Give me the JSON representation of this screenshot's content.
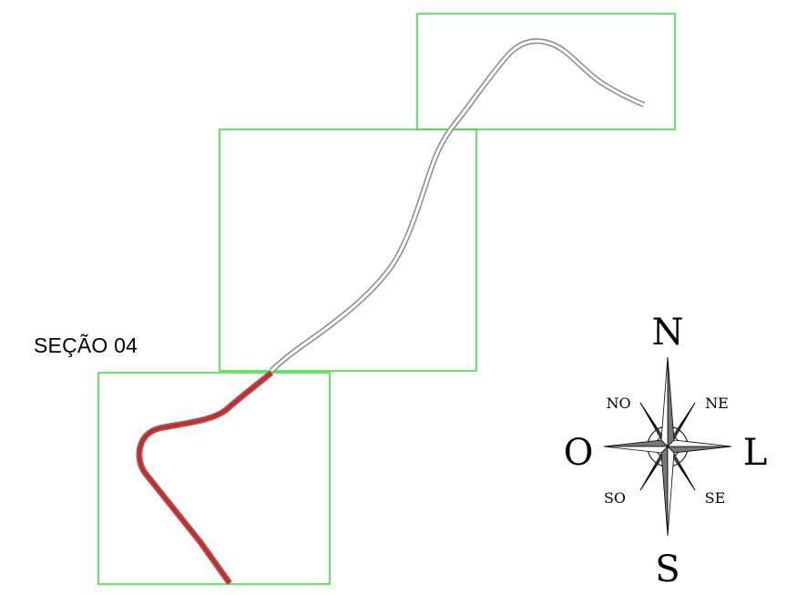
{
  "map": {
    "section_label": "SEÇÃO 04",
    "sheet_frame_color": "#33dd33",
    "active_route_color": "#dd2222",
    "inactive_route_color": "#9a9a9a"
  },
  "compass": {
    "north": "N",
    "south": "S",
    "east": "L",
    "west": "O",
    "northeast": "NE",
    "northwest": "NO",
    "southeast": "SE",
    "southwest": "SO"
  }
}
